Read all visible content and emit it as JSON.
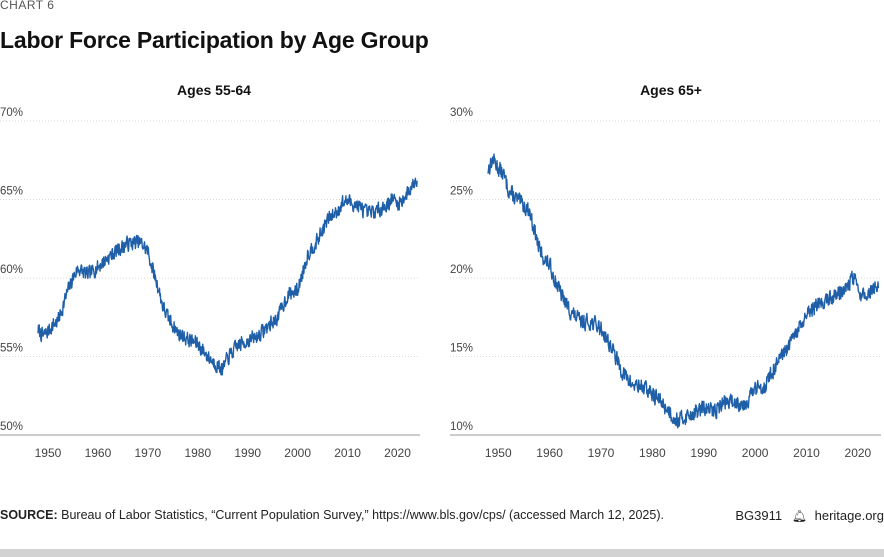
{
  "chart_label": "CHART 6",
  "title": "Labor Force Participation by Age Group",
  "source_label": "SOURCE:",
  "source_text": "Bureau of Labor Statistics, “Current Population Survey,” https://www.bls.gov/cps/ (accessed March 12, 2025).",
  "report_id": "BG3911",
  "brand": "heritage.org",
  "colors": {
    "line": "#1f5fa8",
    "grid": "#d9d9d9",
    "text": "#333333"
  },
  "chart_data": [
    {
      "type": "line",
      "title": "Ages 55-64",
      "xlabel": "",
      "ylabel": "",
      "xlim": [
        1948,
        2024.5
      ],
      "ylim": [
        50,
        70
      ],
      "yticks": [
        50,
        55,
        60,
        65,
        70
      ],
      "ytick_labels": [
        "50%",
        "55%",
        "60%",
        "65%",
        "70%"
      ],
      "xticks": [
        1950,
        1960,
        1970,
        1980,
        1990,
        2000,
        2010,
        2020
      ],
      "xtick_labels": [
        "1950",
        "1960",
        "1970",
        "1980",
        "1990",
        "2000",
        "2010",
        "2020"
      ],
      "noise": 0.55,
      "seed": 7,
      "series": [
        {
          "name": "Ages 55-64",
          "x": [
            1948,
            1949,
            1950,
            1951,
            1952,
            1953,
            1954,
            1955,
            1956,
            1957,
            1958,
            1960,
            1962,
            1964,
            1966,
            1968,
            1969,
            1970,
            1971,
            1972,
            1973,
            1974,
            1976,
            1978,
            1980,
            1982,
            1984,
            1985,
            1986,
            1988,
            1990,
            1992,
            1994,
            1996,
            1998,
            2000,
            2002,
            2004,
            2006,
            2008,
            2009,
            2010,
            2012,
            2014,
            2016,
            2018,
            2019,
            2020,
            2021,
            2022,
            2023,
            2024
          ],
          "values": [
            56.7,
            56.3,
            56.6,
            57.0,
            57.3,
            58.2,
            59.2,
            60.0,
            60.6,
            60.4,
            60.2,
            60.7,
            61.3,
            61.8,
            62.2,
            62.3,
            62.1,
            61.7,
            60.5,
            59.5,
            58.2,
            57.5,
            56.5,
            56.1,
            55.8,
            55.0,
            54.4,
            54.2,
            54.9,
            55.7,
            56.0,
            56.3,
            56.9,
            57.5,
            58.9,
            59.2,
            61.5,
            62.4,
            63.7,
            64.3,
            64.8,
            64.9,
            64.6,
            64.1,
            64.3,
            64.7,
            65.1,
            64.7,
            65.0,
            65.4,
            65.9,
            66.5
          ]
        }
      ]
    },
    {
      "type": "line",
      "title": "Ages 65+",
      "xlabel": "",
      "ylabel": "",
      "xlim": [
        1948,
        2024.5
      ],
      "ylim": [
        10,
        30
      ],
      "yticks": [
        10,
        15,
        20,
        25,
        30
      ],
      "ytick_labels": [
        "10%",
        "15%",
        "20%",
        "25%",
        "30%"
      ],
      "xticks": [
        1950,
        1960,
        1970,
        1980,
        1990,
        2000,
        2010,
        2020
      ],
      "xtick_labels": [
        "1950",
        "1960",
        "1970",
        "1980",
        "1990",
        "2000",
        "2010",
        "2020"
      ],
      "noise": 0.6,
      "seed": 13,
      "series": [
        {
          "name": "Ages 65+",
          "x": [
            1948,
            1949,
            1950,
            1951,
            1952,
            1953,
            1954,
            1955,
            1956,
            1957,
            1958,
            1959,
            1960,
            1962,
            1964,
            1966,
            1968,
            1970,
            1972,
            1974,
            1976,
            1978,
            1980,
            1982,
            1984,
            1985,
            1986,
            1988,
            1990,
            1992,
            1994,
            1996,
            1998,
            2000,
            2002,
            2004,
            2006,
            2008,
            2010,
            2012,
            2014,
            2016,
            2018,
            2019,
            2020,
            2021,
            2022,
            2023,
            2024
          ],
          "values": [
            26.9,
            27.6,
            27.0,
            26.6,
            25.6,
            25.2,
            24.9,
            24.6,
            24.3,
            23.1,
            21.8,
            21.2,
            20.8,
            19.1,
            17.9,
            17.2,
            17.2,
            16.8,
            15.6,
            14.1,
            13.2,
            13.1,
            12.6,
            12.0,
            11.2,
            10.9,
            11.1,
            11.4,
            11.7,
            11.5,
            12.1,
            12.1,
            12.0,
            12.9,
            13.2,
            14.4,
            15.3,
            16.5,
            17.5,
            18.3,
            18.6,
            19.0,
            19.4,
            20.1,
            19.3,
            18.8,
            19.0,
            19.4,
            19.2
          ]
        }
      ]
    }
  ]
}
